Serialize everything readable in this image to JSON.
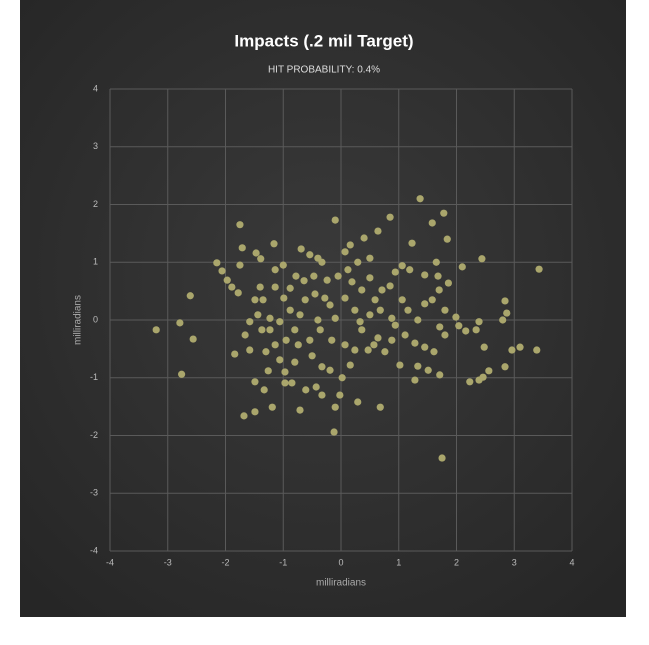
{
  "chart_data": {
    "type": "scatter",
    "title": "Impacts (.2 mil Target)",
    "subtitle": "HIT PROBABILITY: 0.4%",
    "x_label": "milliradians",
    "y_label": "milliradians",
    "color": "#aaa66c",
    "grid": true,
    "xlim": [
      -4,
      4
    ],
    "ylim": [
      -4,
      4
    ],
    "xticks": [
      -4,
      -3,
      -2,
      -1,
      0,
      1,
      2,
      3,
      4
    ],
    "yticks": [
      -4,
      -3,
      -2,
      -1,
      0,
      1,
      2,
      3,
      4
    ],
    "x": [
      -3.2,
      -2.79,
      -2.76,
      -2.61,
      -2.56,
      -2.15,
      -2.06,
      -1.97,
      -1.89,
      -1.78,
      -1.75,
      -1.71,
      -1.75,
      -1.84,
      -1.68,
      -1.49,
      -1.47,
      -1.39,
      -1.16,
      -1.14,
      -1.58,
      -1.37,
      -1.23,
      -1.49,
      -1.33,
      -1.19,
      -0.97,
      -0.71,
      -0.69,
      -0.54,
      -0.4,
      -0.1,
      0.07,
      0.4,
      0.29,
      0.64,
      0.85,
      1.37,
      1.78,
      1.58,
      1.23,
      1.84,
      2.44,
      2.1,
      3.43,
      2.84,
      2.87,
      2.8,
      2.96,
      3.39,
      3.1,
      2.48,
      2.84,
      2.56,
      2.46,
      2.39,
      2.23,
      1.75,
      1.71,
      1.28,
      0.68,
      0.29,
      -0.12,
      -0.1,
      -0.02,
      -0.33,
      -0.43,
      -0.61,
      -0.85,
      -0.97,
      -0.19,
      0.02,
      1.02,
      1.33,
      1.61,
      1.51,
      2.04,
      2.16,
      2.39,
      2.34,
      1.99,
      1.8,
      1.71,
      1.8,
      1.58,
      1.45,
      1.7,
      1.68,
      1.86,
      1.65,
      1.45,
      1.19,
      1.06,
      0.94,
      0.85,
      0.71,
      0.59,
      0.36,
      0.5,
      0.12,
      0.19,
      -0.05,
      -0.24,
      -0.47,
      -0.64,
      -0.78,
      -0.88,
      -0.99,
      -1.14,
      -1.35,
      -1.49,
      -1.44,
      -1.23,
      -1.06,
      -0.88,
      -0.71,
      -0.62,
      -0.45,
      -0.28,
      -0.19,
      0.07,
      0.24,
      0.33,
      0.5,
      0.68,
      0.88,
      1.06,
      1.16,
      1.33,
      1.11,
      0.88,
      0.64,
      0.47,
      0.24,
      0.07,
      -0.16,
      -0.36,
      -0.54,
      -0.74,
      -0.95,
      -1.14,
      -1.3,
      -1.06,
      -0.8,
      -0.5,
      -0.33,
      0.16,
      0.57,
      0.76,
      1.28,
      1.45,
      0.94,
      0.36,
      -0.4,
      -0.1,
      -0.8,
      -1.58,
      -1.4,
      -1.66,
      -1.26,
      0.16,
      0.5,
      -0.33,
      -1.0
    ],
    "y": [
      -0.17,
      -0.05,
      -0.94,
      0.42,
      -0.33,
      0.99,
      0.85,
      0.69,
      0.57,
      0.47,
      1.65,
      1.25,
      0.95,
      -0.59,
      -1.66,
      -1.59,
      1.16,
      1.06,
      1.32,
      0.87,
      -0.52,
      -0.17,
      -0.17,
      -1.07,
      -1.21,
      -1.51,
      -1.09,
      -1.56,
      1.23,
      1.13,
      1.07,
      1.73,
      1.18,
      1.42,
      1.0,
      1.54,
      1.78,
      2.1,
      1.85,
      1.68,
      1.33,
      1.4,
      1.06,
      0.92,
      0.88,
      0.33,
      0.12,
      0,
      -0.52,
      -0.52,
      -0.47,
      -0.47,
      -0.81,
      -0.88,
      -0.99,
      -1.04,
      -1.07,
      -2.39,
      -0.95,
      -1.04,
      -1.51,
      -1.42,
      -1.94,
      -1.51,
      -1.3,
      -1.3,
      -1.16,
      -1.21,
      -1.09,
      -0.9,
      -0.87,
      -1.0,
      -0.78,
      -0.8,
      -0.55,
      -0.87,
      -0.1,
      -0.19,
      -0.03,
      -0.17,
      0.05,
      0.17,
      -0.12,
      -0.26,
      0.35,
      0.28,
      0.52,
      0.76,
      0.64,
      1.0,
      0.78,
      0.87,
      0.94,
      0.83,
      0.59,
      0.52,
      0.35,
      0.52,
      0.73,
      0.87,
      0.66,
      0.76,
      0.69,
      0.76,
      0.68,
      0.76,
      0.55,
      0.38,
      0.57,
      0.35,
      0.35,
      0.09,
      0.03,
      -0.03,
      0.17,
      0.09,
      0.35,
      0.45,
      0.38,
      0.26,
      0.38,
      0.17,
      -0.03,
      0.09,
      0.17,
      0.03,
      0.35,
      0.17,
      0,
      -0.26,
      -0.35,
      -0.31,
      -0.52,
      -0.52,
      -0.43,
      -0.35,
      -0.17,
      -0.35,
      -0.43,
      -0.35,
      -0.43,
      -0.55,
      -0.69,
      -0.73,
      -0.62,
      -0.81,
      -0.78,
      -0.43,
      -0.55,
      -0.4,
      -0.47,
      -0.09,
      -0.17,
      0,
      0.03,
      -0.17,
      -0.03,
      0.57,
      -0.26,
      -0.88,
      1.3,
      1.07,
      1.0,
      0.95
    ]
  }
}
